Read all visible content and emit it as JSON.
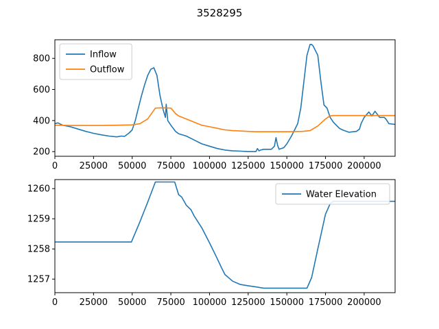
{
  "figure": {
    "title": "3528295"
  },
  "chart_data": [
    {
      "type": "line",
      "xlim": [
        0,
        220000
      ],
      "ylim": [
        170,
        920
      ],
      "xticks": [
        0,
        25000,
        50000,
        75000,
        100000,
        125000,
        150000,
        175000,
        200000
      ],
      "xtick_labels": [
        "0",
        "25000",
        "50000",
        "75000",
        "100000",
        "125000",
        "150000",
        "175000",
        "200000"
      ],
      "yticks": [
        200,
        400,
        600,
        800
      ],
      "ytick_labels": [
        "200",
        "400",
        "600",
        "800"
      ],
      "legend": {
        "placement": "upper-left"
      },
      "grid": false,
      "series": [
        {
          "name": "Inflow",
          "color": "#1f77b4",
          "x": [
            0,
            2000,
            5000,
            10000,
            15000,
            20000,
            25000,
            30000,
            35000,
            40000,
            43000,
            45000,
            48000,
            50000,
            52000,
            54000,
            56000,
            58000,
            60000,
            62000,
            64000,
            66000,
            68000,
            70000,
            71500,
            72000,
            73000,
            75000,
            78000,
            80000,
            85000,
            90000,
            95000,
            100000,
            105000,
            110000,
            115000,
            120000,
            125000,
            130000,
            131000,
            132000,
            133000,
            135000,
            140000,
            142000,
            143000,
            144000,
            145000,
            148000,
            150000,
            153000,
            155000,
            157000,
            159000,
            161000,
            163000,
            165000,
            166000,
            167000,
            170000,
            172000,
            174000,
            176000,
            178000,
            180000,
            182000,
            184000,
            186000,
            190000,
            195000,
            197000,
            198000,
            200000,
            203000,
            205000,
            207000,
            210000,
            213000,
            214000,
            216000,
            220000
          ],
          "y": [
            380,
            385,
            370,
            360,
            345,
            330,
            318,
            308,
            300,
            295,
            300,
            298,
            320,
            340,
            400,
            480,
            560,
            630,
            690,
            730,
            740,
            690,
            560,
            470,
            420,
            505,
            400,
            370,
            330,
            315,
            300,
            275,
            250,
            235,
            220,
            210,
            205,
            203,
            200,
            200,
            220,
            205,
            210,
            215,
            215,
            235,
            290,
            240,
            215,
            225,
            250,
            300,
            340,
            380,
            480,
            650,
            820,
            890,
            890,
            880,
            820,
            650,
            500,
            480,
            420,
            390,
            370,
            350,
            340,
            325,
            330,
            345,
            380,
            420,
            455,
            430,
            460,
            420,
            420,
            410,
            380,
            375
          ]
        },
        {
          "name": "Outflow",
          "color": "#ff7f0e",
          "x": [
            0,
            10000,
            20000,
            30000,
            40000,
            50000,
            55000,
            60000,
            65000,
            70000,
            75000,
            78000,
            80000,
            85000,
            90000,
            95000,
            100000,
            105000,
            110000,
            115000,
            120000,
            125000,
            130000,
            140000,
            150000,
            160000,
            165000,
            170000,
            175000,
            178000,
            180000,
            190000,
            200000,
            210000,
            220000
          ],
          "y": [
            370,
            368,
            368,
            368,
            370,
            372,
            380,
            410,
            480,
            482,
            480,
            445,
            430,
            410,
            390,
            370,
            360,
            350,
            340,
            335,
            333,
            330,
            328,
            328,
            328,
            330,
            335,
            365,
            410,
            430,
            432,
            432,
            432,
            432,
            432
          ]
        }
      ]
    },
    {
      "type": "line",
      "xlim": [
        0,
        220000
      ],
      "ylim": [
        1256.55,
        1260.3
      ],
      "xticks": [
        0,
        25000,
        50000,
        75000,
        100000,
        125000,
        150000,
        175000,
        200000
      ],
      "xtick_labels": [
        "0",
        "25000",
        "50000",
        "75000",
        "100000",
        "125000",
        "150000",
        "175000",
        "200000"
      ],
      "yticks": [
        1257,
        1258,
        1259,
        1260
      ],
      "ytick_labels": [
        "1257",
        "1258",
        "1259",
        "1260"
      ],
      "legend": {
        "placement": "upper-right"
      },
      "grid": false,
      "series": [
        {
          "name": "Water Elevation",
          "color": "#1f77b4",
          "x": [
            0,
            10000,
            20000,
            30000,
            40000,
            49500,
            55000,
            60000,
            65000,
            70000,
            75000,
            77500,
            80000,
            82000,
            85000,
            88000,
            90000,
            95000,
            100000,
            105000,
            108000,
            110000,
            115000,
            120000,
            125000,
            130000,
            135000,
            140000,
            145000,
            150000,
            155000,
            160000,
            163000,
            166000,
            170000,
            175000,
            178000,
            180000,
            190000,
            200000,
            210000,
            220000
          ],
          "y": [
            1258.23,
            1258.23,
            1258.23,
            1258.23,
            1258.23,
            1258.23,
            1258.9,
            1259.55,
            1260.22,
            1260.22,
            1260.22,
            1260.22,
            1259.8,
            1259.72,
            1259.45,
            1259.3,
            1259.1,
            1258.7,
            1258.2,
            1257.68,
            1257.35,
            1257.15,
            1256.93,
            1256.82,
            1256.78,
            1256.74,
            1256.7,
            1256.7,
            1256.7,
            1256.7,
            1256.7,
            1256.7,
            1256.7,
            1257.05,
            1258.0,
            1259.15,
            1259.5,
            1259.58,
            1259.58,
            1259.58,
            1259.58,
            1259.58
          ]
        }
      ]
    }
  ]
}
